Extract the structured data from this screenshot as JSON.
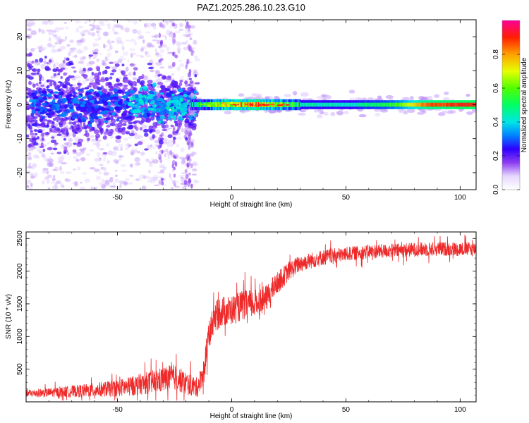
{
  "figure": {
    "title": "PAZ1.2025.286.10.23.G10"
  },
  "chart_data": [
    {
      "type": "heatmap",
      "title": "PAZ1.2025.286.10.23.G10",
      "xlabel": "Height of straight line (km)",
      "ylabel": "Frequency (Hz)",
      "xlim": [
        -90,
        107
      ],
      "ylim": [
        -25,
        25
      ],
      "xticks": [
        -50,
        0,
        50,
        100
      ],
      "yticks": [
        -20,
        -10,
        0,
        10,
        20
      ],
      "colorbar": {
        "label": "Normalized spectral amplitude",
        "range": [
          0,
          1
        ],
        "ticks": [
          "0.0",
          "0.2",
          "0.4",
          "0.6",
          "0.8"
        ],
        "tick_values": [
          0.0,
          0.2,
          0.4,
          0.6,
          0.8
        ],
        "stops": [
          {
            "value": 0.0,
            "color": "#ffffff"
          },
          {
            "value": 0.08,
            "color": "#e6d7ff"
          },
          {
            "value": 0.16,
            "color": "#8c3cf0"
          },
          {
            "value": 0.24,
            "color": "#2f00ff"
          },
          {
            "value": 0.32,
            "color": "#0082ff"
          },
          {
            "value": 0.4,
            "color": "#00e6e6"
          },
          {
            "value": 0.5,
            "color": "#00ff64"
          },
          {
            "value": 0.6,
            "color": "#50ff00"
          },
          {
            "value": 0.7,
            "color": "#e6ff00"
          },
          {
            "value": 0.8,
            "color": "#ffa000"
          },
          {
            "value": 0.9,
            "color": "#ff1e00"
          },
          {
            "value": 1.0,
            "color": "#ff0096"
          }
        ]
      },
      "ridge": {
        "description": "narrow band at ~0 Hz",
        "profile": [
          {
            "x": -18,
            "amplitude": 0.35
          },
          {
            "x": -10,
            "amplitude": 0.55
          },
          {
            "x": 0,
            "amplitude": 0.75
          },
          {
            "x": 10,
            "amplitude": 0.8
          },
          {
            "x": 20,
            "amplitude": 0.65
          },
          {
            "x": 30,
            "amplitude": 0.45
          },
          {
            "x": 50,
            "amplitude": 0.42
          },
          {
            "x": 70,
            "amplitude": 0.55
          },
          {
            "x": 85,
            "amplitude": 0.85
          },
          {
            "x": 107,
            "amplitude": 0.92
          }
        ]
      }
    },
    {
      "type": "line",
      "xlabel": "Height of straight line (km)",
      "ylabel": "SNR (10 * v/v)",
      "xlim": [
        -90,
        107
      ],
      "ylim": [
        0,
        2600
      ],
      "xticks": [
        -50,
        0,
        50,
        100
      ],
      "yticks": [
        500,
        1000,
        1500,
        2000,
        2500
      ],
      "series": [
        {
          "name": "SNR",
          "color": "#ee2a2a",
          "x": [
            -90,
            -80,
            -70,
            -60,
            -50,
            -45,
            -40,
            -35,
            -30,
            -25,
            -20,
            -15,
            -12,
            -10,
            -8,
            -5,
            0,
            5,
            10,
            15,
            20,
            25,
            30,
            40,
            50,
            60,
            70,
            80,
            90,
            100,
            107
          ],
          "y": [
            130,
            140,
            160,
            180,
            210,
            230,
            270,
            300,
            340,
            380,
            280,
            220,
            500,
            1000,
            1250,
            1380,
            1400,
            1480,
            1500,
            1580,
            1820,
            2000,
            2120,
            2210,
            2260,
            2300,
            2310,
            2330,
            2340,
            2340,
            2340
          ],
          "noise_amplitude": [
            60,
            70,
            90,
            110,
            130,
            150,
            160,
            180,
            200,
            200,
            180,
            150,
            200,
            230,
            240,
            240,
            230,
            230,
            220,
            200,
            170,
            150,
            130,
            120,
            110,
            110,
            110,
            110,
            110,
            110,
            110
          ]
        }
      ]
    }
  ]
}
